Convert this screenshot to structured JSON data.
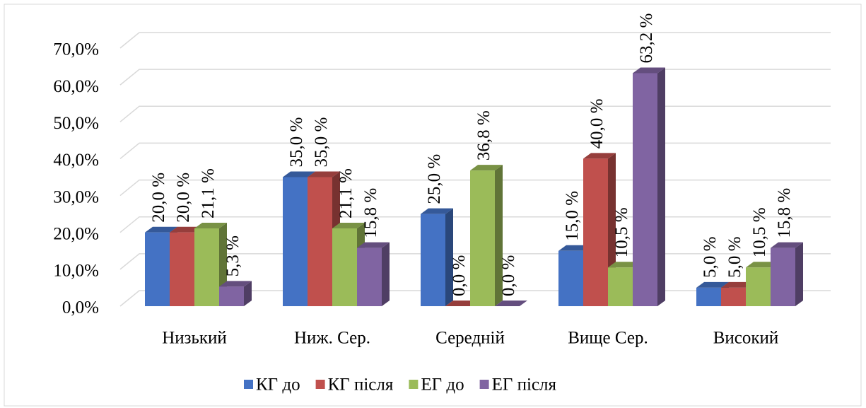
{
  "chart_data": {
    "type": "bar3d",
    "categories": [
      "Низький",
      "Ниж. Сер.",
      "Середній",
      "Вище Сер.",
      "Високий"
    ],
    "series": [
      {
        "name": "КГ до",
        "color": "#4472c4",
        "values": [
          20,
          35,
          25,
          15,
          5
        ],
        "value_labels": [
          "20,0 %",
          "35,0 %",
          "25,0 %",
          "15,0 %",
          "5,0 %"
        ]
      },
      {
        "name": "КГ після",
        "color": "#c0504d",
        "values": [
          20,
          35,
          0,
          40,
          5
        ],
        "value_labels": [
          "20,0 %",
          "35,0 %",
          "0,0 %",
          "40,0 %",
          "5,0 %"
        ]
      },
      {
        "name": "ЕГ до",
        "color": "#9bbb59",
        "values": [
          21.1,
          21.1,
          36.8,
          10.5,
          10.5
        ],
        "value_labels": [
          "21,1 %",
          "21,1 %",
          "36,8 %",
          "10,5 %",
          "10,5 %"
        ]
      },
      {
        "name": "ЕГ після",
        "color": "#8064a2",
        "values": [
          5.3,
          15.8,
          0,
          63.2,
          15.8
        ],
        "value_labels": [
          "5,3 %",
          "15,8 %",
          "0,0 %",
          "63,2 %",
          "15,8 %"
        ]
      }
    ],
    "ylim": [
      0,
      70
    ],
    "yticks": [
      {
        "value": 0,
        "label": "0,0%"
      },
      {
        "value": 10,
        "label": "10,0%"
      },
      {
        "value": 20,
        "label": "20,0%"
      },
      {
        "value": 30,
        "label": "30,0%"
      },
      {
        "value": 40,
        "label": "40,0%"
      },
      {
        "value": 50,
        "label": "50,0%"
      },
      {
        "value": 60,
        "label": "60,0%"
      },
      {
        "value": 70,
        "label": "70,0%"
      }
    ],
    "grid": true,
    "legend": "bottom"
  }
}
